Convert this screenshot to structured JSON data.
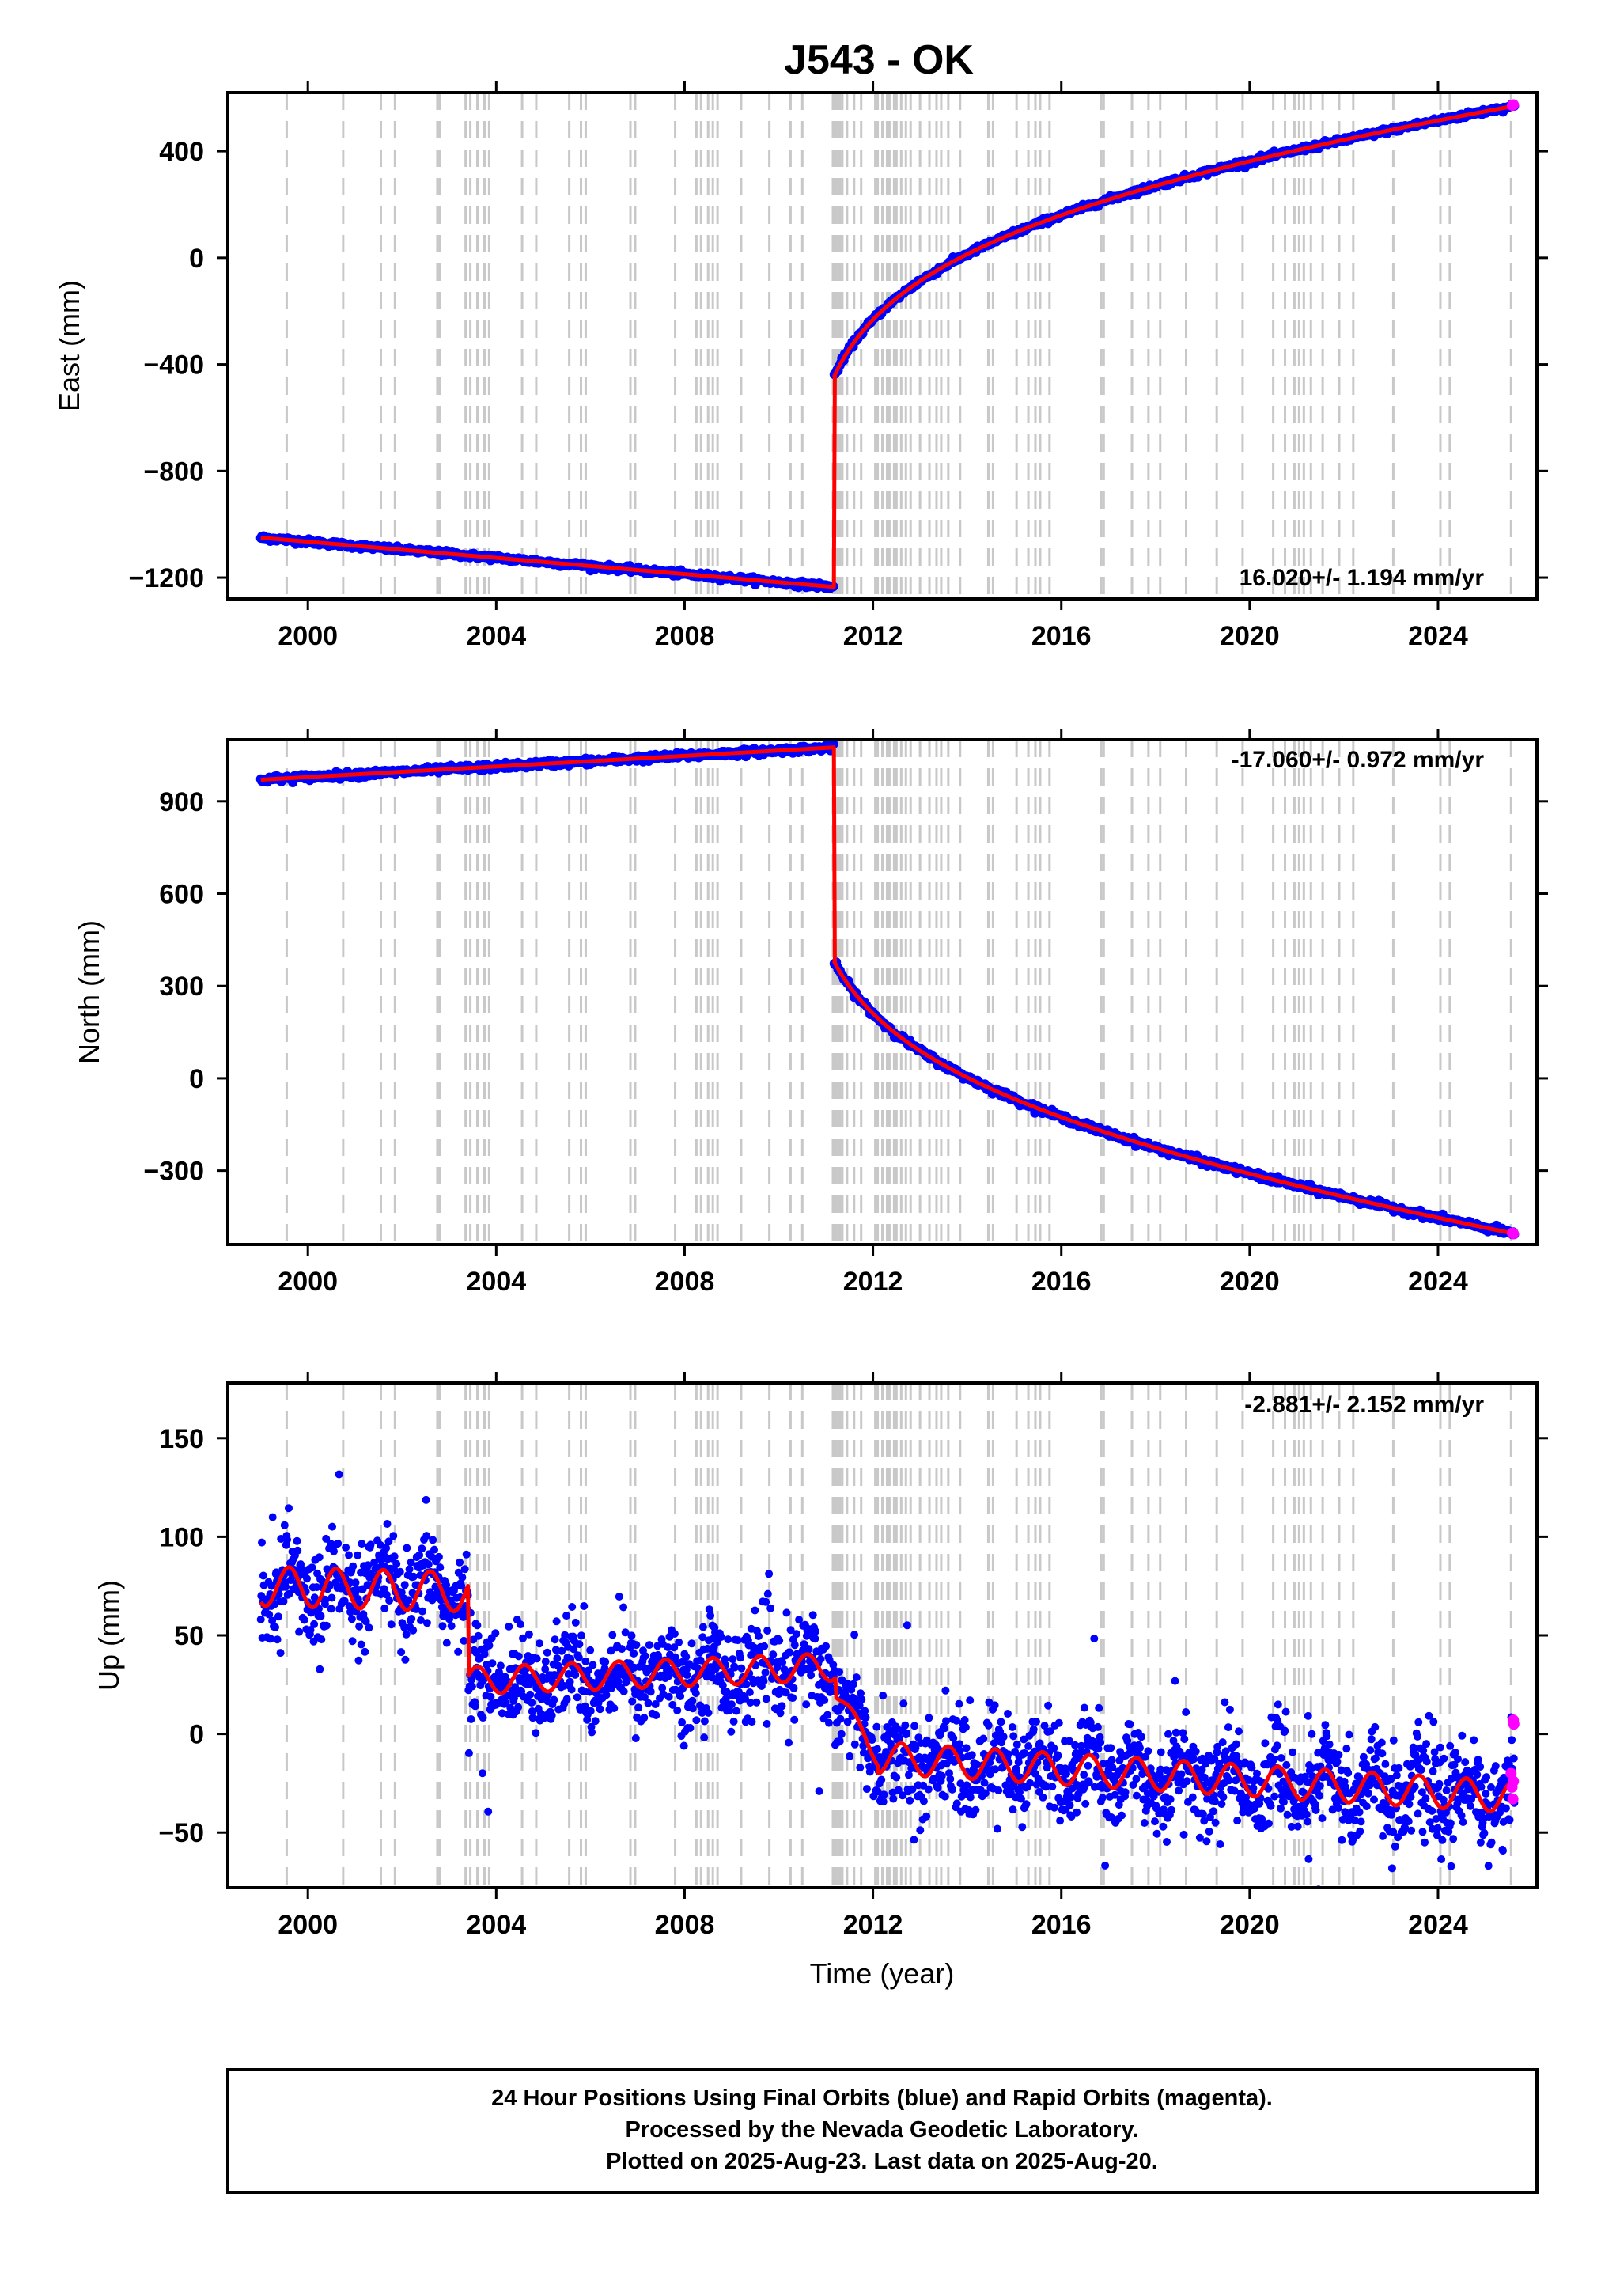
{
  "title": "J543 - OK",
  "xlabel": "Time (year)",
  "footer": {
    "line1": "24 Hour Positions Using Final Orbits (blue) and Rapid Orbits (magenta).",
    "line2": "Processed by the Nevada Geodetic Laboratory.",
    "line3": "Plotted on 2025-Aug-23. Last data on 2025-Aug-20."
  },
  "colors": {
    "final_orbits": "#0000ff",
    "rapid_orbits": "#ff00ff",
    "model_fit": "#ff0000",
    "event_lines": "#c8c8c8"
  },
  "chart_data": [
    {
      "type": "scatter",
      "name": "east",
      "ylabel": "East (mm)",
      "rate_label": "16.020+/- 1.194 mm/yr",
      "xlim": [
        1998.3,
        2026.1
      ],
      "ylim": [
        -1280,
        620
      ],
      "yticks": [
        -1200,
        -800,
        -400,
        0,
        400
      ],
      "ytick_labels": [
        "−1200",
        "−800",
        "−400",
        "0",
        "400"
      ],
      "xticks": [
        2000,
        2004,
        2008,
        2012,
        2016,
        2020,
        2024
      ],
      "xtick_labels": [
        "2000",
        "2004",
        "2008",
        "2012",
        "2016",
        "2020",
        "2024"
      ],
      "model": {
        "pre": {
          "t0": 1999.0,
          "v0": -1050,
          "t1": 2011.17,
          "v1": -1235
        },
        "jump_to": -440,
        "post": {
          "t_start": 2011.19,
          "t_end": 2025.63,
          "v_end": 570,
          "rate": 16.0,
          "log_amp": 530,
          "log_tau": 0.7
        }
      },
      "noise_mm": 5,
      "rapid": [
        [
          2025.58,
          572
        ],
        [
          2025.6,
          574
        ]
      ]
    },
    {
      "type": "scatter",
      "name": "north",
      "ylabel": "North (mm)",
      "rate_label": "-17.060+/- 0.972 mm/yr",
      "xlim": [
        1998.3,
        2026.1
      ],
      "ylim": [
        -540,
        1100
      ],
      "yticks": [
        -300,
        0,
        300,
        600,
        900
      ],
      "ytick_labels": [
        "−300",
        "0",
        "300",
        "600",
        "900"
      ],
      "xticks": [
        2000,
        2004,
        2008,
        2012,
        2016,
        2020,
        2024
      ],
      "xtick_labels": [
        "2000",
        "2004",
        "2008",
        "2012",
        "2016",
        "2020",
        "2024"
      ],
      "model": {
        "pre": {
          "t0": 1999.0,
          "v0": 970,
          "t1": 2011.17,
          "v1": 1075
        },
        "jump_to": 375,
        "post": {
          "t_start": 2011.19,
          "t_end": 2025.63,
          "v_end": -505,
          "rate": -17.0,
          "log_amp": -560,
          "log_tau": 0.8
        }
      },
      "noise_mm": 5,
      "rapid": [
        [
          2025.58,
          -503
        ],
        [
          2025.6,
          -505
        ]
      ]
    },
    {
      "type": "scatter",
      "name": "up",
      "ylabel": "Up (mm)",
      "rate_label": "-2.881+/- 2.152 mm/yr",
      "xlim": [
        1998.3,
        2026.1
      ],
      "ylim": [
        -78,
        178
      ],
      "yticks": [
        -50,
        0,
        50,
        100,
        150
      ],
      "ytick_labels": [
        "−50",
        "0",
        "50",
        "100",
        "150"
      ],
      "xticks": [
        2000,
        2004,
        2008,
        2012,
        2016,
        2020,
        2024
      ],
      "xtick_labels": [
        "2000",
        "2004",
        "2008",
        "2012",
        "2016",
        "2020",
        "2024"
      ],
      "segments": [
        {
          "t0": 1999.0,
          "t1": 2003.4,
          "v0": 75,
          "v1": 72,
          "amp": 10
        },
        {
          "t0": 2003.4,
          "t1": 2011.2,
          "v0": 27,
          "v1": 34,
          "amp": 7
        },
        {
          "t0": 2011.2,
          "t1": 2012.1,
          "v0": 22,
          "v1": -12,
          "amp": 4
        },
        {
          "t0": 2012.1,
          "t1": 2025.63,
          "v0": -12,
          "v1": -32,
          "amp": 8
        }
      ],
      "noise_mm": 12,
      "rapid": [
        [
          2025.55,
          -20
        ],
        [
          2025.57,
          -27
        ],
        [
          2025.59,
          -33
        ],
        [
          2025.6,
          7
        ],
        [
          2025.61,
          5
        ],
        [
          2025.6,
          -24
        ]
      ]
    }
  ],
  "event_years": [
    1999.55,
    2000.75,
    2001.55,
    2001.85,
    2002.75,
    2002.8,
    2003.35,
    2003.45,
    2003.6,
    2003.75,
    2003.85,
    2004.55,
    2004.85,
    2005.55,
    2005.8,
    2005.9,
    2006.85,
    2006.95,
    2007.8,
    2008.25,
    2008.35,
    2008.5,
    2008.6,
    2008.7,
    2009.2,
    2009.8,
    2010.25,
    2010.5,
    2011.15,
    2011.2,
    2011.25,
    2011.3,
    2011.35,
    2011.45,
    2011.6,
    2011.75,
    2012.05,
    2012.1,
    2012.2,
    2012.3,
    2012.35,
    2012.45,
    2012.5,
    2012.6,
    2012.7,
    2012.8,
    2013.0,
    2013.2,
    2013.35,
    2013.45,
    2013.6,
    2013.85,
    2014.45,
    2014.55,
    2015.05,
    2015.3,
    2015.45,
    2015.55,
    2015.75,
    2016.85,
    2016.9,
    2017.5,
    2017.85,
    2018.1,
    2018.65,
    2019.3,
    2019.85,
    2020.5,
    2020.75,
    2020.95,
    2021.05,
    2021.15,
    2021.3,
    2021.55,
    2021.9,
    2022.2,
    2023.05,
    2024.05,
    2024.25,
    2025.55
  ]
}
